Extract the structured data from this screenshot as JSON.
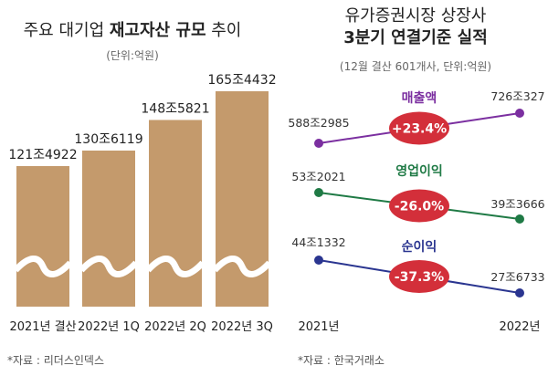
{
  "left": {
    "title_plain": "주요 대기업 ",
    "title_bold": "재고자산 규모",
    "title_tail": " 추이",
    "unit": "(단위:억원)",
    "source": "*자료 : 리더스인덱스"
  },
  "right": {
    "title_line1": "유가증권시장 상장사",
    "title_line2": "3분기 연결기준 실적",
    "unit": "(12월 결산 601개사, 단위:억원)",
    "x_start": "2021년",
    "x_end": "2022년",
    "source": "*자료 : 한국거래소"
  },
  "chart_data": [
    {
      "type": "bar",
      "title": "주요 대기업 재고자산 규모 추이",
      "unit": "(단위:억원)",
      "categories": [
        "2021년 결산",
        "2022년 1Q",
        "2022년 2Q",
        "2022년 3Q"
      ],
      "values": [
        1214922,
        1306119,
        1485821,
        1654432
      ],
      "value_labels": [
        "121조4922",
        "130조6119",
        "148조5821",
        "165조4432"
      ],
      "axis_break": true,
      "colors": {
        "bar": "#c49a6c"
      }
    },
    {
      "type": "line",
      "title": "유가증권시장 상장사 3분기 연결기준 실적",
      "unit": "(12월 결산 601개사, 단위:억원)",
      "x": [
        "2021년",
        "2022년"
      ],
      "series": [
        {
          "name": "매출액",
          "values": [
            5882985,
            7260327
          ],
          "labels": [
            "588조2985",
            "726조327"
          ],
          "change": "+23.4%",
          "color": "#7b2fa0"
        },
        {
          "name": "영업이익",
          "values": [
            532021,
            393666
          ],
          "labels": [
            "53조2021",
            "39조3666"
          ],
          "change": "-26.0%",
          "color": "#1f7a45"
        },
        {
          "name": "순이익",
          "values": [
            441332,
            276733
          ],
          "labels": [
            "44조1332",
            "27조6733"
          ],
          "change": "-37.3%",
          "color": "#2a3590"
        }
      ],
      "colors": {
        "badge": "#d32f3a"
      }
    }
  ]
}
